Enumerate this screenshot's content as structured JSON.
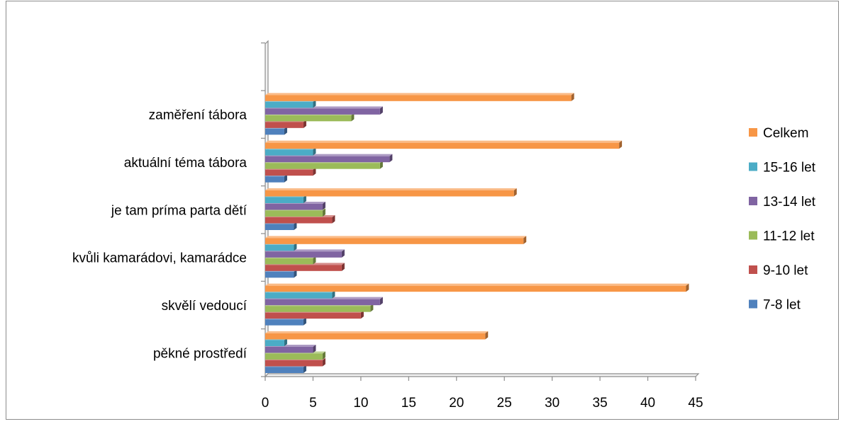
{
  "chart_data": {
    "type": "bar",
    "orientation": "horizontal",
    "style": "3d-clustered",
    "categories": [
      "pěkné prostředí",
      "skvělí vedoucí",
      "kvůli kamarádovi, kamarádce",
      "je tam príma parta dětí",
      "aktuální téma tábora",
      "zaměření tábora"
    ],
    "series": [
      {
        "name": "7-8 let",
        "color": "#4F81BD",
        "values": [
          4,
          4,
          3,
          3,
          2,
          2
        ]
      },
      {
        "name": "9-10 let",
        "color": "#C0504D",
        "values": [
          6,
          10,
          8,
          7,
          5,
          4
        ]
      },
      {
        "name": "11-12 let",
        "color": "#9BBB59",
        "values": [
          6,
          11,
          5,
          6,
          12,
          9
        ]
      },
      {
        "name": "13-14 let",
        "color": "#8064A2",
        "values": [
          5,
          12,
          8,
          6,
          13,
          12
        ]
      },
      {
        "name": "15-16 let",
        "color": "#4BACC6",
        "values": [
          2,
          7,
          3,
          4,
          5,
          5
        ]
      },
      {
        "name": "Celkem",
        "color": "#F79646",
        "values": [
          23,
          44,
          27,
          26,
          37,
          32
        ]
      }
    ],
    "xlim": [
      0,
      45
    ],
    "xticks": [
      0,
      5,
      10,
      15,
      20,
      25,
      30,
      35,
      40,
      45
    ],
    "title": "",
    "xlabel": "",
    "ylabel": "",
    "grid": false,
    "legend_position": "right"
  }
}
